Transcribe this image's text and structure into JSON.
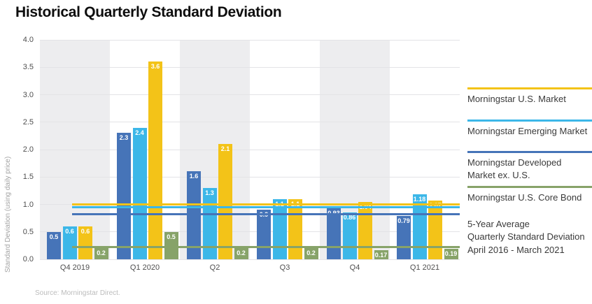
{
  "title": "Historical Quarterly Standard Deviation",
  "y_axis_title": "Standard Deviation (using daily price)",
  "source": "Source: Morningstar Direct.",
  "colors": {
    "us_market": "#f3c318",
    "emerging": "#3cb7e8",
    "developed": "#4674b8",
    "core_bond": "#87a369",
    "band_gray": "#ededef",
    "gridline": "#e3e3e6"
  },
  "chart_data": {
    "type": "bar",
    "title": "Historical Quarterly Standard Deviation",
    "ylabel": "Standard Deviation (using daily price)",
    "ylim": [
      0,
      4.0
    ],
    "yticks": [
      "0.0",
      "0.5",
      "1.0",
      "1.5",
      "2.0",
      "2.5",
      "3.0",
      "3.5",
      "4.0"
    ],
    "grid": true,
    "background_bands": "alternating-gray",
    "legend_position": "right",
    "categories": [
      "Q4 2019",
      "Q1 2020",
      "Q2",
      "Q3",
      "Q4",
      "Q1 2021"
    ],
    "series": [
      {
        "name": "Morningstar Developed Market ex. U.S.",
        "color": "#4674b8",
        "values": [
          0.5,
          2.3,
          1.6,
          0.9,
          0.93,
          0.79
        ],
        "labels": [
          "0.5",
          "2.3",
          "1.6",
          "0.9",
          "0.93",
          "0.79"
        ]
      },
      {
        "name": "Morningstar Emerging Market",
        "color": "#3cb7e8",
        "values": [
          0.6,
          2.4,
          1.3,
          1.1,
          0.86,
          1.18
        ],
        "labels": [
          "0.6",
          "2.4",
          "1.3",
          "1.1",
          "0.86",
          "1.18"
        ]
      },
      {
        "name": "Morningstar U.S. Market",
        "color": "#f3c318",
        "values": [
          0.6,
          3.6,
          2.1,
          1.1,
          1.04,
          1.07
        ],
        "labels": [
          "0.6",
          "3.6",
          "2.1",
          "1.1",
          "1.04",
          "1.07"
        ]
      },
      {
        "name": "Morningstar U.S. Core Bond",
        "color": "#87a369",
        "values": [
          0.2,
          0.5,
          0.2,
          0.2,
          0.17,
          0.19
        ],
        "labels": [
          "0.2",
          "0.5",
          "0.2",
          "0.2",
          "0.17",
          "0.19"
        ]
      }
    ],
    "avg_lines": [
      {
        "name": "Morningstar U.S. Market 5-year average",
        "color": "#f3c318",
        "value": 1.0
      },
      {
        "name": "Morningstar Emerging Market 5-year average",
        "color": "#3cb7e8",
        "value": 0.95
      },
      {
        "name": "Morningstar Developed Market ex. U.S. 5-year average",
        "color": "#4674b8",
        "value": 0.82
      },
      {
        "name": "Morningstar U.S. Core Bond 5-year average",
        "color": "#87a369",
        "value": 0.22
      }
    ]
  },
  "legend": {
    "items": [
      {
        "label_lines": [
          "Morningstar U.S. Market"
        ],
        "color": "#f3c318"
      },
      {
        "label_lines": [
          "Morningstar Emerging Market"
        ],
        "color": "#3cb7e8"
      },
      {
        "label_lines": [
          "Morningstar Developed",
          "Market ex. U.S."
        ],
        "color": "#4674b8"
      },
      {
        "label_lines": [
          "Morningstar U.S. Core Bond"
        ],
        "color": "#87a369"
      }
    ],
    "note_lines": [
      "5-Year Average",
      "Quarterly Standard Deviation",
      "April 2016 - March 2021"
    ]
  }
}
